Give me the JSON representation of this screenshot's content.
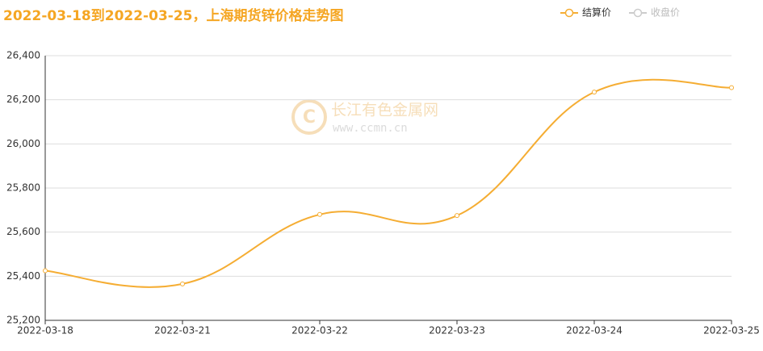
{
  "chart_data": {
    "type": "line",
    "title": "2022-03-18到2022-03-25，上海期货锌价格走势图",
    "categories": [
      "2022-03-18",
      "2022-03-21",
      "2022-03-22",
      "2022-03-23",
      "2022-03-24",
      "2022-03-25"
    ],
    "series": [
      {
        "name": "结算价",
        "color": "#f5ad33",
        "values": [
          25425,
          25365,
          25680,
          25675,
          26235,
          26255
        ]
      }
    ],
    "legend_inactive": {
      "name": "收盘价",
      "color": "#cccccc"
    },
    "watermark": {
      "name": "长江有色金属网",
      "url": "www.ccmn.cn"
    },
    "ylim": [
      25200,
      26400
    ],
    "yticks": [
      {
        "value": 25200,
        "label": "25,200"
      },
      {
        "value": 25400,
        "label": "25,400"
      },
      {
        "value": 25600,
        "label": "25,600"
      },
      {
        "value": 25800,
        "label": "25,800"
      },
      {
        "value": 26000,
        "label": "26,000"
      },
      {
        "value": 26200,
        "label": "26,200"
      },
      {
        "value": 26400,
        "label": "26,400"
      }
    ],
    "grid": true
  }
}
